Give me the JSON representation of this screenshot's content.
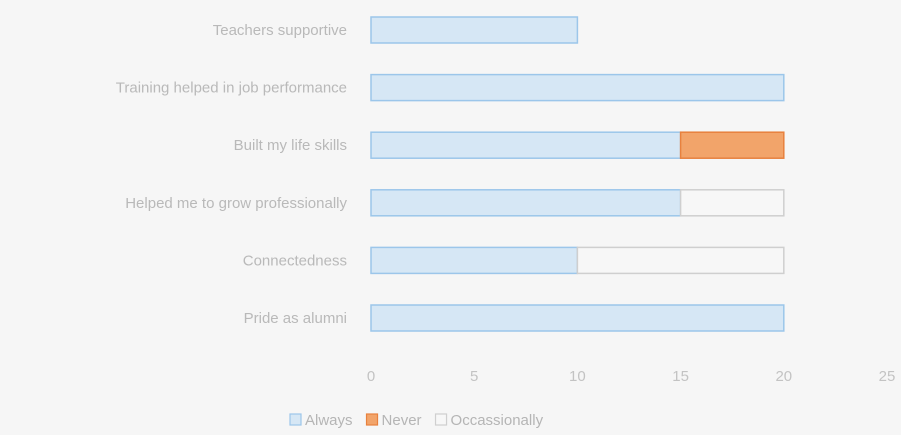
{
  "chart_data": {
    "type": "bar",
    "orientation": "horizontal",
    "stacked": true,
    "categories": [
      "Teachers supportive",
      "Training helped in job performance",
      "Built my life skills",
      "Helped me to grow professionally",
      "Connectedness",
      "Pride as alumni"
    ],
    "series": [
      {
        "name": "Always",
        "values": [
          10,
          20,
          15,
          15,
          10,
          20
        ],
        "color": "#d6e7f5",
        "stroke": "#9cc6ea"
      },
      {
        "name": "Never",
        "values": [
          0,
          0,
          5,
          0,
          0,
          0
        ],
        "color": "#f2a46a",
        "stroke": "#e8813e"
      },
      {
        "name": "Occassionally",
        "values": [
          0,
          0,
          0,
          5,
          10,
          0
        ],
        "color": "#f7f7f7",
        "stroke": "#cfcfcf"
      }
    ],
    "xlim": [
      0,
      25
    ],
    "xticks": [
      "0",
      "5",
      "10",
      "15",
      "20",
      "25"
    ],
    "grid": false,
    "legend_position": "bottom"
  }
}
